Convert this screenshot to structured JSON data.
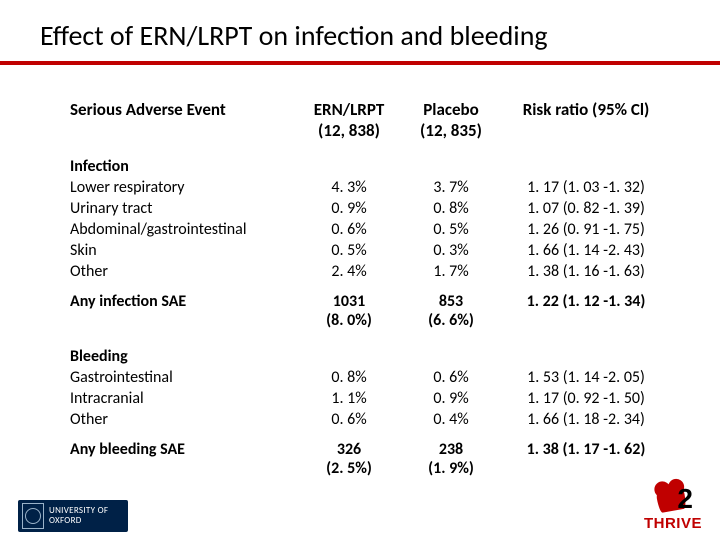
{
  "title": "Effect of ERN/LRPT on infection and bleeding",
  "title_color": "#000000",
  "rule_color": "#c00000",
  "background_color": "#ffffff",
  "table": {
    "headers": {
      "c0": "Serious Adverse Event",
      "c1_line1": "ERN/LRPT",
      "c1_line2": "(12, 838)",
      "c2_line1": "Placebo",
      "c2_line2": "(12, 835)",
      "c3": "Risk ratio (95% Cl)"
    },
    "groups": [
      {
        "label": "Infection",
        "rows": [
          {
            "label": "Lower respiratory",
            "ern": "4. 3%",
            "placebo": "3. 7%",
            "rr": "1. 17 (1. 03 -1. 32)"
          },
          {
            "label": "Urinary tract",
            "ern": "0. 9%",
            "placebo": "0. 8%",
            "rr": "1. 07 (0. 82 -1. 39)"
          },
          {
            "label": "Abdominal/gastrointestinal",
            "ern": "0. 6%",
            "placebo": "0. 5%",
            "rr": "1. 26 (0. 91 -1. 75)"
          },
          {
            "label": "Skin",
            "ern": "0. 5%",
            "placebo": "0. 3%",
            "rr": "1. 66 (1. 14 -2. 43)"
          },
          {
            "label": "Other",
            "ern": "2. 4%",
            "placebo": "1. 7%",
            "rr": "1. 38 (1. 16 -1. 63)"
          }
        ],
        "summary": {
          "label": "Any infection SAE",
          "ern_line1": "1031",
          "ern_line2": "(8. 0%)",
          "placebo_line1": "853",
          "placebo_line2": "(6. 6%)",
          "rr": "1. 22 (1. 12 -1. 34)"
        }
      },
      {
        "label": "Bleeding",
        "rows": [
          {
            "label": "Gastrointestinal",
            "ern": "0. 8%",
            "placebo": "0. 6%",
            "rr": "1. 53 (1. 14 -2. 05)"
          },
          {
            "label": "Intracranial",
            "ern": "1. 1%",
            "placebo": "0. 9%",
            "rr": "1. 17 (0. 92 -1. 50)"
          },
          {
            "label": "Other",
            "ern": "0. 6%",
            "placebo": "0. 4%",
            "rr": "1. 66 (1. 18 -2. 34)"
          }
        ],
        "summary": {
          "label": "Any bleeding SAE",
          "ern_line1": "326",
          "ern_line2": "(2. 5%)",
          "placebo_line1": "238",
          "placebo_line2": "(1. 9%)",
          "rr": "1. 38 (1. 17 -1. 62)"
        }
      }
    ],
    "col_widths": [
      "38%",
      "17%",
      "17%",
      "28%"
    ],
    "font_size_pt": 12,
    "header_font_size_pt": 13
  },
  "footer": {
    "oxford_text_l1": "UNIVERSITY OF",
    "oxford_text_l2": "OXFORD",
    "oxford_bg": "#002147",
    "thrive_text": "THRIVE",
    "thrive_two": "2",
    "thrive_color": "#c00000"
  }
}
